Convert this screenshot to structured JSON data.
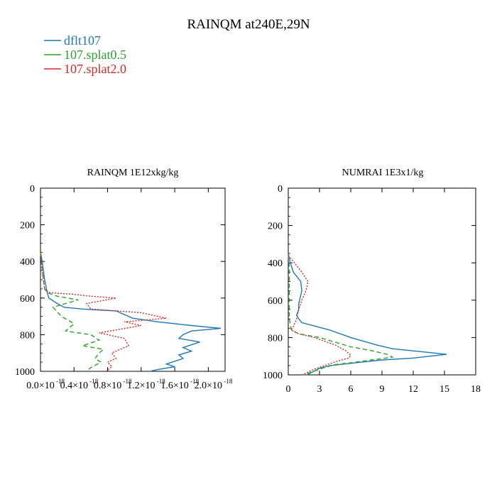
{
  "figure_title": "RAINQM at240E,29N",
  "legend": [
    {
      "label": "dflt107",
      "color": "#1f77b4",
      "dash": "solid"
    },
    {
      "label": "107.splat0.5",
      "color": "#2ca02c",
      "dash": "dashed"
    },
    {
      "label": "107.splat2.0",
      "color": "#d62728",
      "dash": "dotted"
    }
  ],
  "chart_data": [
    {
      "type": "line",
      "title": "RAINQM  1E12xkg/kg",
      "xlim": [
        0,
        2.2
      ],
      "ylim": [
        1000,
        0
      ],
      "x_ticks": [
        0,
        0.4,
        0.8,
        1.2,
        1.6,
        2.0
      ],
      "x_tick_labels": [
        "0.0×10",
        "0.4×10",
        "0.8×10",
        "1.2×10",
        "1.6×10",
        "2.0×10"
      ],
      "x_tick_exp": "-18",
      "y_ticks": [
        0,
        200,
        400,
        600,
        800,
        1000
      ],
      "series": [
        {
          "name": "dflt107",
          "color": "#1f77b4",
          "dash": "solid",
          "points": [
            [
              0,
              350
            ],
            [
              0.02,
              400
            ],
            [
              0.05,
              500
            ],
            [
              0.08,
              570
            ],
            [
              0.1,
              600
            ],
            [
              0.2,
              630
            ],
            [
              0.28,
              650
            ],
            [
              0.5,
              660
            ],
            [
              0.9,
              670
            ],
            [
              1.0,
              690
            ],
            [
              1.1,
              710
            ],
            [
              1.4,
              730
            ],
            [
              1.8,
              750
            ],
            [
              2.15,
              765
            ],
            [
              1.8,
              780
            ],
            [
              1.7,
              800
            ],
            [
              1.65,
              820
            ],
            [
              1.9,
              840
            ],
            [
              1.7,
              870
            ],
            [
              1.8,
              890
            ],
            [
              1.65,
              910
            ],
            [
              1.7,
              930
            ],
            [
              1.5,
              960
            ],
            [
              1.6,
              975
            ],
            [
              1.4,
              990
            ],
            [
              1.3,
              1000
            ]
          ]
        },
        {
          "name": "107.splat0.5",
          "color": "#2ca02c",
          "dash": "dashed",
          "points": [
            [
              0,
              350
            ],
            [
              0.02,
              450
            ],
            [
              0.05,
              550
            ],
            [
              0.08,
              570
            ],
            [
              0.2,
              590
            ],
            [
              0.45,
              610
            ],
            [
              0.3,
              630
            ],
            [
              0.15,
              650
            ],
            [
              0.25,
              700
            ],
            [
              0.4,
              740
            ],
            [
              0.3,
              780
            ],
            [
              0.6,
              800
            ],
            [
              0.7,
              830
            ],
            [
              0.5,
              860
            ],
            [
              0.75,
              880
            ],
            [
              0.7,
              900
            ],
            [
              0.65,
              930
            ],
            [
              0.72,
              950
            ],
            [
              0.6,
              980
            ],
            [
              0.55,
              1000
            ]
          ]
        },
        {
          "name": "107.splat2.0",
          "color": "#d62728",
          "dash": "dotted",
          "points": [
            [
              0,
              350
            ],
            [
              0.02,
              450
            ],
            [
              0.05,
              550
            ],
            [
              0.1,
              570
            ],
            [
              0.4,
              580
            ],
            [
              0.6,
              590
            ],
            [
              0.9,
              600
            ],
            [
              0.55,
              630
            ],
            [
              0.6,
              660
            ],
            [
              1.2,
              680
            ],
            [
              1.5,
              710
            ],
            [
              1.0,
              730
            ],
            [
              1.2,
              750
            ],
            [
              0.95,
              770
            ],
            [
              0.7,
              790
            ],
            [
              1.0,
              820
            ],
            [
              1.05,
              860
            ],
            [
              0.95,
              880
            ],
            [
              0.85,
              900
            ],
            [
              0.9,
              930
            ],
            [
              0.8,
              950
            ],
            [
              0.85,
              975
            ],
            [
              0.78,
              1000
            ]
          ]
        }
      ]
    },
    {
      "type": "line",
      "title": "NUMRAI  1E3x1/kg",
      "xlim": [
        0,
        18
      ],
      "ylim": [
        1000,
        0
      ],
      "x_ticks": [
        0,
        3,
        6,
        9,
        12,
        15,
        18
      ],
      "x_tick_labels": [
        "0",
        "3",
        "6",
        "9",
        "12",
        "15",
        "18"
      ],
      "y_ticks": [
        0,
        200,
        400,
        600,
        800,
        1000
      ],
      "series": [
        {
          "name": "dflt107",
          "color": "#1f77b4",
          "dash": "solid",
          "points": [
            [
              0,
              350
            ],
            [
              0.2,
              400
            ],
            [
              0.5,
              450
            ],
            [
              1.2,
              500
            ],
            [
              1.3,
              550
            ],
            [
              1,
              620
            ],
            [
              1,
              650
            ],
            [
              0.8,
              680
            ],
            [
              1,
              700
            ],
            [
              1.3,
              720
            ],
            [
              4,
              760
            ],
            [
              6,
              800
            ],
            [
              8.5,
              840
            ],
            [
              10,
              860
            ],
            [
              13.5,
              880
            ],
            [
              15.2,
              890
            ],
            [
              12,
              910
            ],
            [
              9,
              920
            ],
            [
              6.5,
              935
            ],
            [
              4,
              950
            ],
            [
              3,
              965
            ],
            [
              1.8,
              1000
            ]
          ]
        },
        {
          "name": "107.splat0.5",
          "color": "#2ca02c",
          "dash": "dashed",
          "points": [
            [
              0,
              360
            ],
            [
              0.1,
              420
            ],
            [
              0.1,
              500
            ],
            [
              0.1,
              600
            ],
            [
              0.1,
              700
            ],
            [
              0.3,
              760
            ],
            [
              1,
              780
            ],
            [
              3,
              800
            ],
            [
              6,
              850
            ],
            [
              8,
              870
            ],
            [
              9.5,
              890
            ],
            [
              10,
              905
            ],
            [
              8,
              920
            ],
            [
              6,
              935
            ],
            [
              4.5,
              945
            ],
            [
              3.5,
              960
            ],
            [
              2.5,
              980
            ],
            [
              1.5,
              1000
            ]
          ]
        },
        {
          "name": "107.splat2.0",
          "color": "#d62728",
          "dash": "dotted",
          "points": [
            [
              0,
              360
            ],
            [
              0.6,
              400
            ],
            [
              1.3,
              450
            ],
            [
              1.9,
              500
            ],
            [
              1.7,
              550
            ],
            [
              1.3,
              600
            ],
            [
              1,
              650
            ],
            [
              0.8,
              700
            ],
            [
              0.5,
              740
            ],
            [
              0.3,
              760
            ],
            [
              1,
              780
            ],
            [
              2.5,
              800
            ],
            [
              4.5,
              840
            ],
            [
              5.5,
              870
            ],
            [
              6,
              895
            ],
            [
              5.8,
              910
            ],
            [
              4.5,
              930
            ],
            [
              3.5,
              950
            ],
            [
              2.5,
              970
            ],
            [
              1.3,
              1000
            ]
          ]
        }
      ]
    }
  ]
}
